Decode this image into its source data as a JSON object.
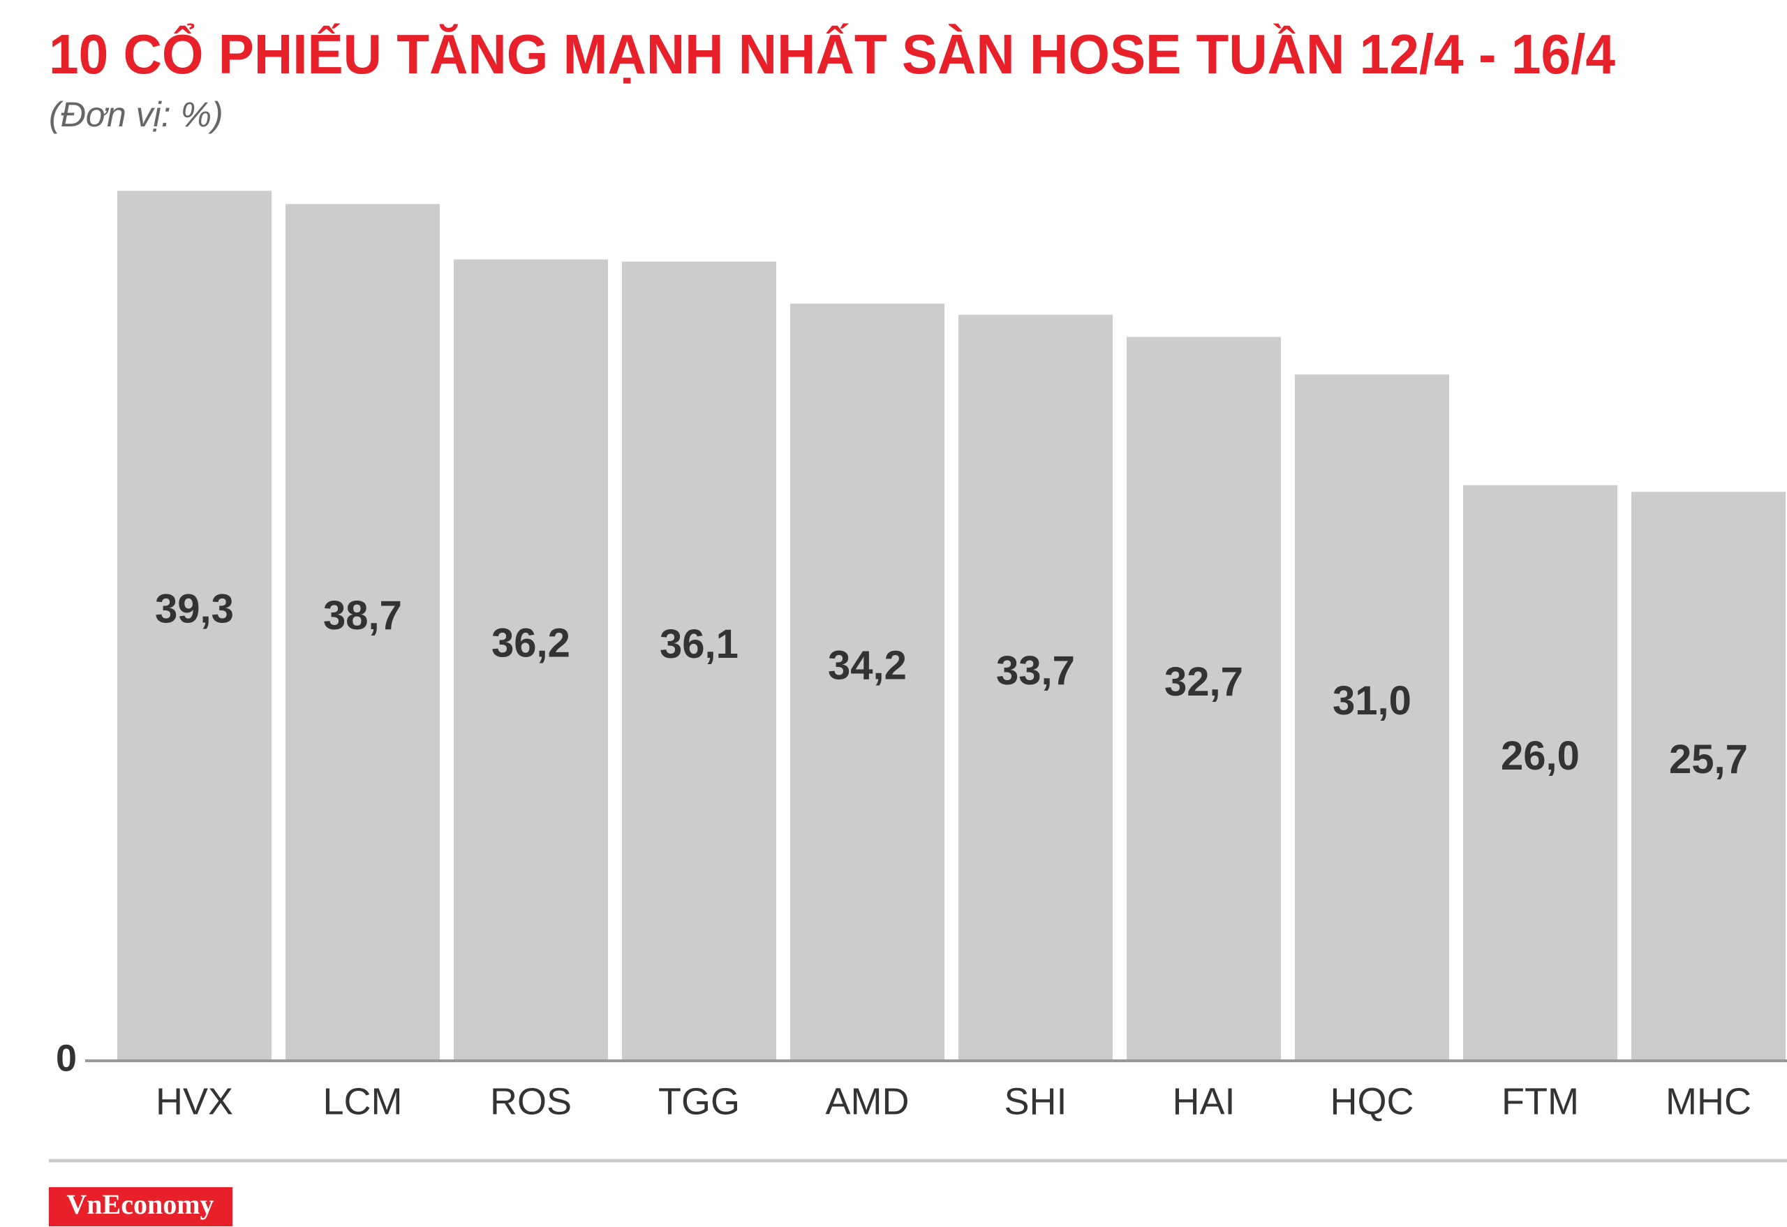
{
  "chart_data": {
    "type": "bar",
    "title": "10 CỔ PHIẾU TĂNG MẠNH NHẤT SÀN HOSE TUẦN 12/4 - 16/4",
    "subtitle": "(Đơn vị: %)",
    "categories": [
      "HVX",
      "LCM",
      "ROS",
      "TGG",
      "AMD",
      "SHI",
      "HAI",
      "HQC",
      "FTM",
      "MHC"
    ],
    "values": [
      39.3,
      38.7,
      36.2,
      36.1,
      34.2,
      33.7,
      32.7,
      31.0,
      26.0,
      25.7
    ],
    "value_labels": [
      "39,3",
      "38,7",
      "36,2",
      "36,1",
      "34,2",
      "33,7",
      "32,7",
      "31,0",
      "26,0",
      "25,7"
    ],
    "color": "#cccccc",
    "ylim": [
      0,
      40
    ],
    "yticks": [
      0
    ],
    "grid": false,
    "brand": "VnEconomy"
  }
}
